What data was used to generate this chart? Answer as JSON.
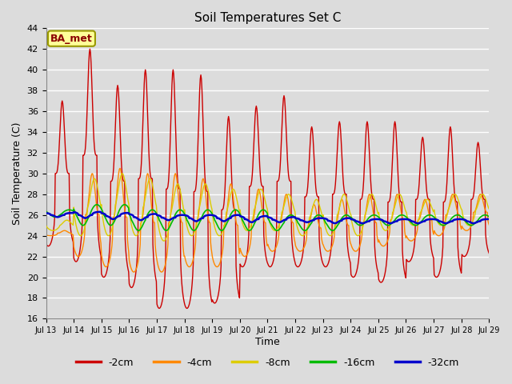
{
  "title": "Soil Temperatures Set C",
  "xlabel": "Time",
  "ylabel": "Soil Temperature (C)",
  "ylim": [
    16,
    44
  ],
  "yticks": [
    16,
    18,
    20,
    22,
    24,
    26,
    28,
    30,
    32,
    34,
    36,
    38,
    40,
    42,
    44
  ],
  "bg_color": "#dcdcdc",
  "grid_color": "white",
  "legend_labels": [
    "-2cm",
    "-4cm",
    "-8cm",
    "-16cm",
    "-32cm"
  ],
  "legend_colors": [
    "#cc0000",
    "#ff8800",
    "#ddcc00",
    "#00bb00",
    "#0000cc"
  ],
  "line_widths": [
    1.0,
    1.0,
    1.0,
    1.2,
    1.8
  ],
  "annotation_text": "BA_met",
  "start_day": 13,
  "n_per_day": 48,
  "n_days": 16,
  "mean_temp": 25.5,
  "daily_max_2cm": [
    37.0,
    42.0,
    38.5,
    40.0,
    40.0,
    39.5,
    35.5,
    36.5,
    37.5,
    34.5,
    35.0,
    35.0,
    35.0,
    33.5,
    34.5,
    33.0
  ],
  "daily_min_2cm": [
    23.0,
    21.5,
    20.0,
    19.0,
    17.0,
    17.0,
    17.5,
    21.0,
    21.0,
    21.0,
    21.0,
    20.0,
    19.5,
    21.5,
    20.0,
    22.0
  ],
  "daily_max_4cm": [
    24.5,
    30.0,
    30.5,
    30.0,
    30.0,
    29.5,
    29.0,
    28.5,
    28.0,
    27.0,
    27.5,
    28.0,
    28.0,
    27.5,
    28.0,
    28.0
  ],
  "daily_min_4cm": [
    24.0,
    22.0,
    21.0,
    20.5,
    20.5,
    21.0,
    21.0,
    22.0,
    22.5,
    22.5,
    22.5,
    22.5,
    23.0,
    23.5,
    24.0,
    24.5
  ],
  "daily_max_8cm": [
    25.5,
    29.5,
    30.0,
    29.5,
    29.0,
    29.0,
    28.5,
    28.5,
    28.0,
    27.5,
    28.0,
    28.0,
    28.0,
    27.5,
    28.0,
    28.0
  ],
  "daily_min_8cm": [
    24.5,
    24.0,
    24.0,
    24.0,
    23.5,
    24.0,
    24.0,
    24.5,
    24.5,
    24.0,
    24.0,
    24.0,
    24.5,
    25.0,
    25.0,
    25.0
  ],
  "daily_max_16cm": [
    26.5,
    27.0,
    27.0,
    26.5,
    26.5,
    26.5,
    26.5,
    26.5,
    26.0,
    26.0,
    26.0,
    26.0,
    26.0,
    26.0,
    26.0,
    26.0
  ],
  "daily_min_16cm": [
    25.8,
    25.0,
    25.0,
    24.5,
    24.5,
    24.5,
    24.5,
    24.5,
    24.5,
    24.5,
    24.5,
    25.0,
    25.0,
    25.0,
    25.0,
    25.0
  ],
  "daily_max_32cm": [
    26.2,
    26.3,
    26.2,
    26.1,
    26.0,
    26.0,
    26.0,
    25.9,
    25.8,
    25.7,
    25.7,
    25.6,
    25.6,
    25.6,
    25.6,
    25.6
  ],
  "daily_min_32cm": [
    25.8,
    25.7,
    25.6,
    25.5,
    25.5,
    25.4,
    25.4,
    25.3,
    25.3,
    25.3,
    25.2,
    25.2,
    25.2,
    25.2,
    25.2,
    25.2
  ],
  "peak_hour_2cm": 14,
  "peak_hour_4cm": 16,
  "peak_hour_8cm": 18,
  "peak_hour_16cm": 20,
  "peak_hour_32cm": 22,
  "sharpness_2cm": 4.0,
  "sharpness_4cm": 2.5,
  "sharpness_8cm": 1.5,
  "sharpness_16cm": 0.8,
  "sharpness_32cm": 0.4
}
